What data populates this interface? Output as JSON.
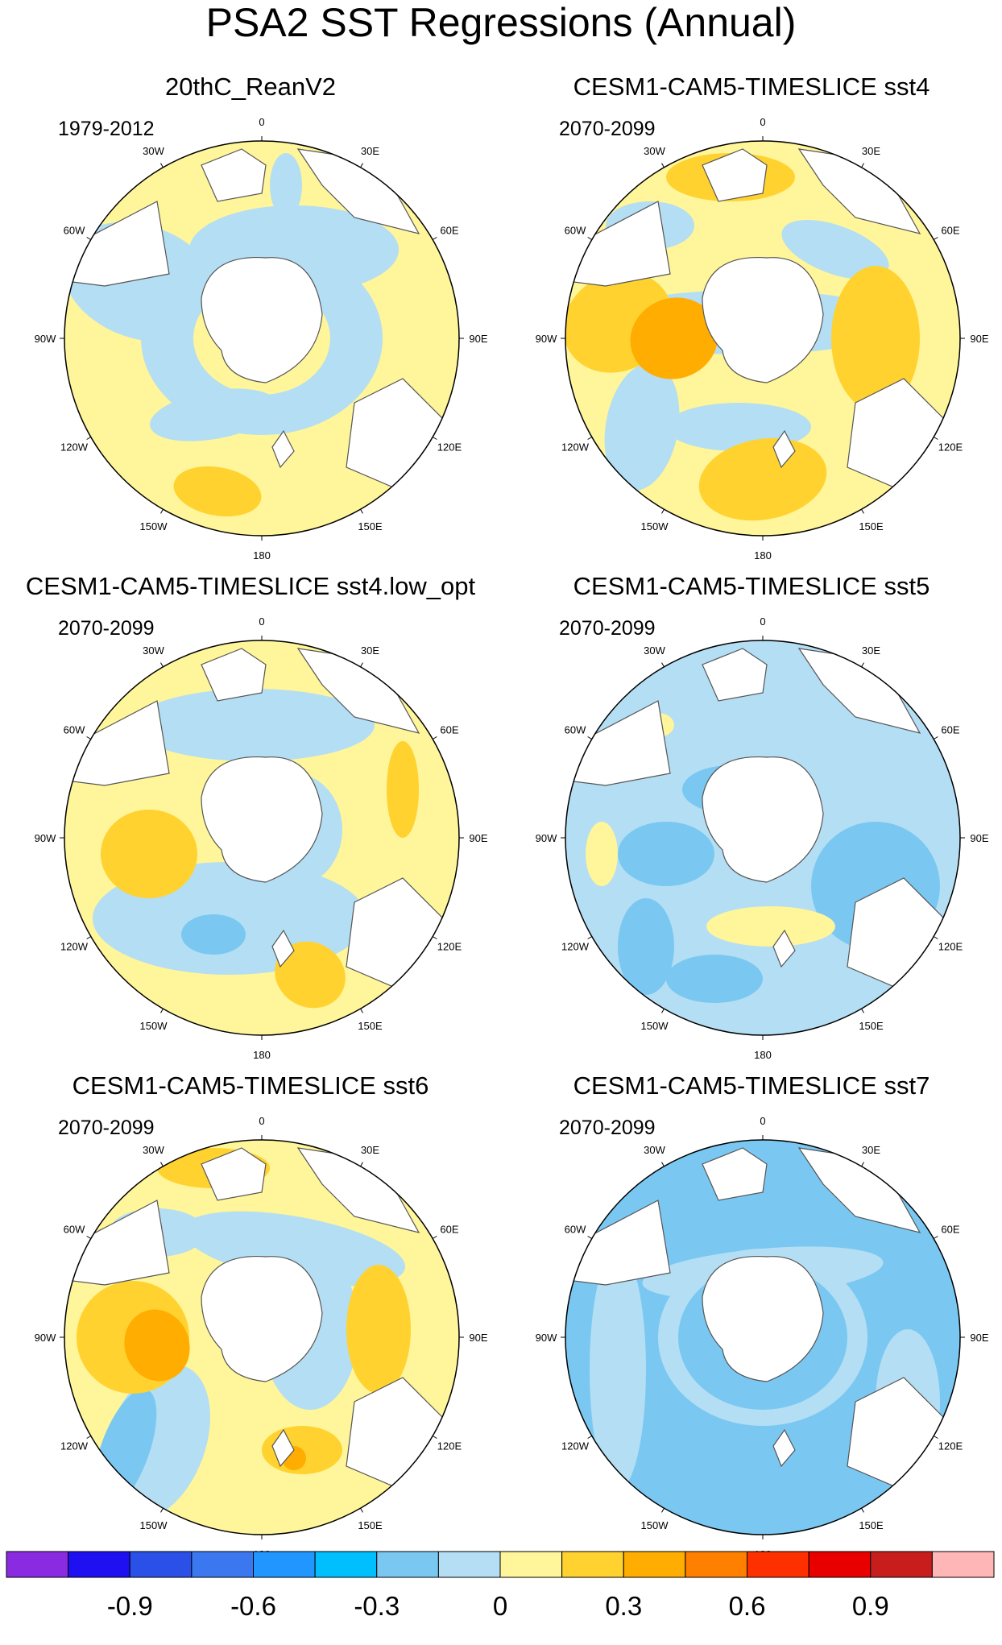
{
  "title": "PSA2 SST Regressions (Annual)",
  "panels": [
    {
      "title": "20thC_ReanV2",
      "period": "1979-2012"
    },
    {
      "title": "CESM1-CAM5-TIMESLICE sst4",
      "period": "2070-2099"
    },
    {
      "title": "CESM1-CAM5-TIMESLICE sst4.low_opt",
      "period": "2070-2099"
    },
    {
      "title": "CESM1-CAM5-TIMESLICE sst5",
      "period": "2070-2099"
    },
    {
      "title": "CESM1-CAM5-TIMESLICE sst6",
      "period": "2070-2099"
    },
    {
      "title": "CESM1-CAM5-TIMESLICE sst7",
      "period": "2070-2099"
    }
  ],
  "longitude_labels": {
    "top": "0",
    "upper_right": "30E",
    "right_upper": "60E",
    "right": "90E",
    "right_lower": "120E",
    "lower_right": "150E",
    "bottom": "180",
    "lower_left": "150W",
    "left_lower": "120W",
    "left": "90W",
    "left_upper": "60W",
    "upper_left": "30W"
  },
  "colorbar": {
    "colors": [
      "#8a2be2",
      "#1e10f0",
      "#2a50e8",
      "#3b78f0",
      "#2196ff",
      "#00bfff",
      "#7ac8f2",
      "#b4def3",
      "#fff59a",
      "#ffd230",
      "#ffad00",
      "#ff7f00",
      "#ff3000",
      "#e80000",
      "#c81d1d",
      "#ffb6b6"
    ],
    "tick_labels": [
      "-0.9",
      "-0.6",
      "-0.3",
      "0",
      "0.3",
      "0.6",
      "0.9"
    ]
  }
}
